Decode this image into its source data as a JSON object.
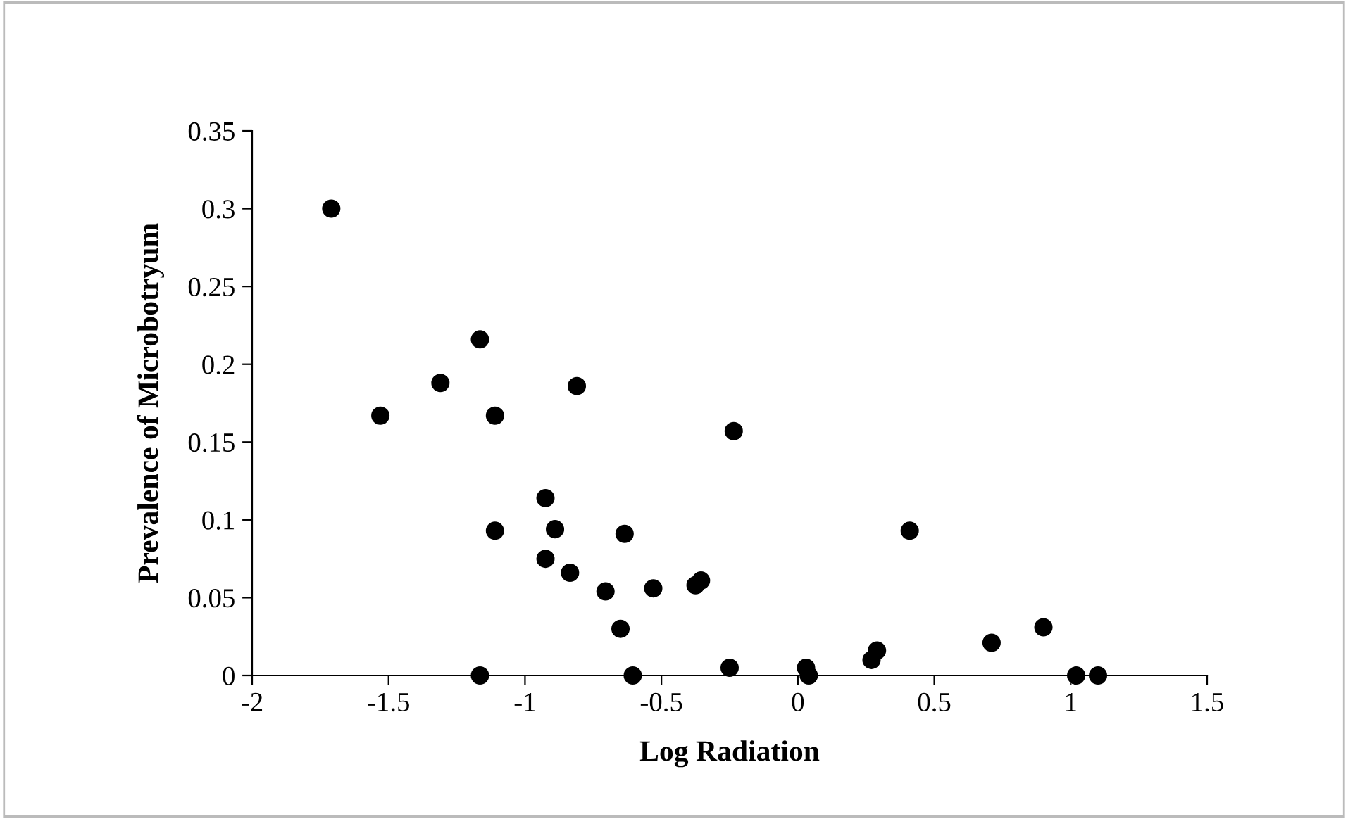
{
  "chart_data": {
    "type": "scatter",
    "xlabel": "Log Radiation",
    "ylabel": "Prevalence of Microbotryum",
    "x": [
      -1.71,
      -1.53,
      -1.31,
      -1.165,
      -1.165,
      -1.11,
      -1.11,
      -0.925,
      -0.925,
      -0.89,
      -0.835,
      -0.81,
      -0.705,
      -0.65,
      -0.635,
      -0.605,
      -0.53,
      -0.375,
      -0.355,
      -0.25,
      -0.235,
      0.03,
      0.04,
      0.27,
      0.29,
      0.41,
      0.71,
      0.9,
      1.02,
      1.1
    ],
    "series": [
      {
        "color": "#000000",
        "values": [
          0.3,
          0.167,
          0.188,
          0.216,
          0,
          0.167,
          0.093,
          0.114,
          0.075,
          0.094,
          0.066,
          0.186,
          0.054,
          0.03,
          0.091,
          0,
          0.056,
          0.058,
          0.061,
          0.005,
          0.157,
          0.005,
          0,
          0.01,
          0.016,
          0.093,
          0.021,
          0.031,
          0,
          0
        ]
      }
    ],
    "xlim": [
      -2,
      1.5
    ],
    "ylim": [
      0,
      0.35
    ],
    "xticks": [
      -2,
      -1.5,
      -1,
      -0.5,
      0,
      0.5,
      1,
      1.5
    ],
    "yticks": [
      0,
      0.05,
      0.1,
      0.15,
      0.2,
      0.25,
      0.3,
      0.35
    ],
    "grid": false,
    "marker": "circle"
  }
}
